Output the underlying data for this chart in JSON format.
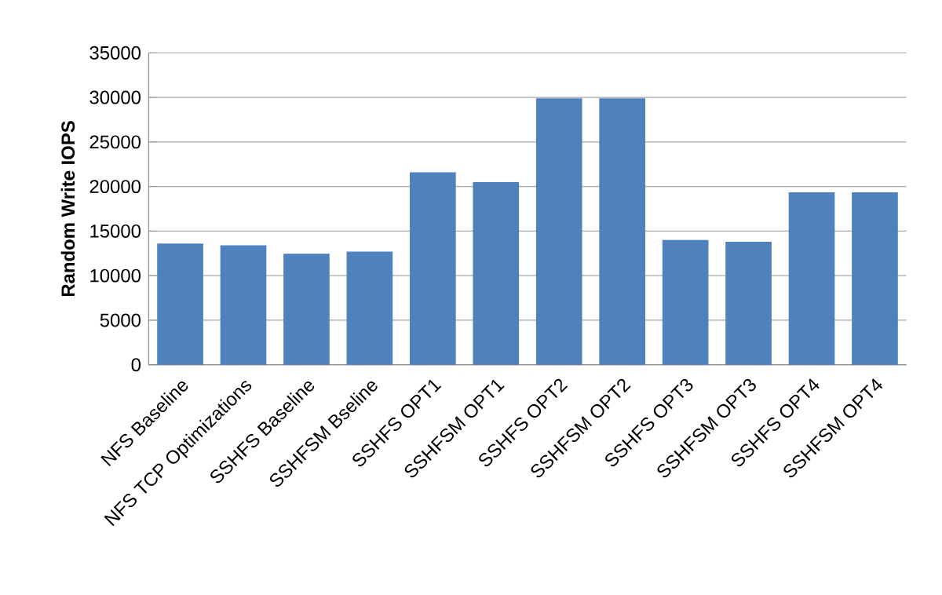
{
  "chart_data": {
    "type": "bar",
    "ylabel": "Random Write IOPS",
    "categories": [
      "NFS Baseline",
      "NFS TCP Optimizations",
      "SSHFS Baseline",
      "SSHFSM Bseline",
      "SSHFS OPT1",
      "SSHFSM OPT1",
      "SSHFS OPT2",
      "SSHFSM OPT2",
      "SSHFS OPT3",
      "SSHFSM OPT3",
      "SSHFS OPT4",
      "SSHFSM OPT4"
    ],
    "values": [
      13600,
      13400,
      12450,
      12700,
      21600,
      20500,
      29900,
      29900,
      14000,
      13800,
      19350,
      19350
    ],
    "color": "#4f81bd",
    "ylim": [
      0,
      35000
    ],
    "yticks": [
      0,
      5000,
      10000,
      15000,
      20000,
      25000,
      30000,
      35000
    ],
    "grid": "y"
  }
}
